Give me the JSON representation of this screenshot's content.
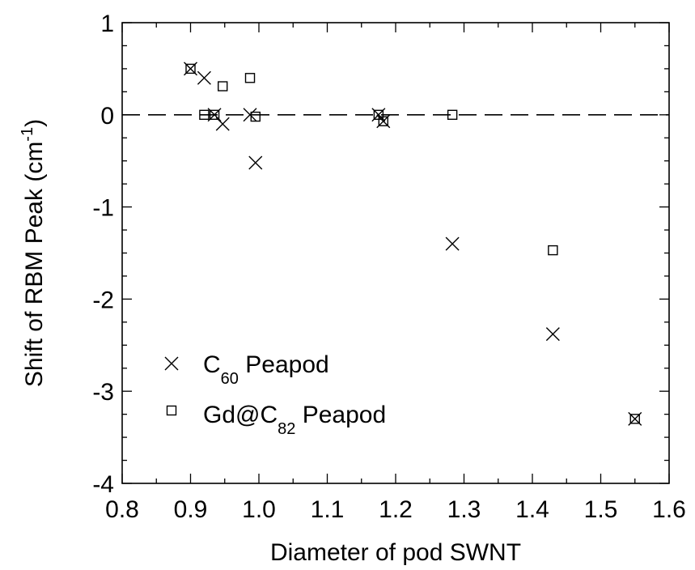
{
  "chart_data": {
    "type": "scatter",
    "title": "",
    "xlabel": "Diameter of pod SWNT",
    "ylabel": {
      "prefix": "Shift of RBM Peak (cm",
      "superscript": "-1",
      "suffix": ")"
    },
    "xlim": [
      0.8,
      1.6
    ],
    "ylim": [
      -4,
      1
    ],
    "xticks": [
      "0.8",
      "0.9",
      "1.0",
      "1.1",
      "1.2",
      "1.3",
      "1.4",
      "1.5",
      "1.6"
    ],
    "yticks": [
      "1",
      "0",
      "-1",
      "-2",
      "-3",
      "-4"
    ],
    "reference_line": {
      "y": 0,
      "style": "dashed"
    },
    "grid": false,
    "legend_position": "lower-left",
    "series": [
      {
        "name": {
          "base": "C",
          "subscript": "60",
          "suffix": " Peapod"
        },
        "marker": "x",
        "points": [
          [
            0.9,
            0.5
          ],
          [
            0.92,
            0.4
          ],
          [
            0.935,
            0.0
          ],
          [
            0.947,
            -0.1
          ],
          [
            0.987,
            0.0
          ],
          [
            0.995,
            -0.52
          ],
          [
            1.175,
            0.0
          ],
          [
            1.182,
            -0.07
          ],
          [
            1.283,
            -1.4
          ],
          [
            1.43,
            -2.38
          ],
          [
            1.55,
            -3.3
          ]
        ]
      },
      {
        "name": {
          "base": "Gd@C",
          "subscript": "82",
          "suffix": " Peapod"
        },
        "marker": "square",
        "points": [
          [
            0.9,
            0.5
          ],
          [
            0.92,
            0.0
          ],
          [
            0.935,
            0.0
          ],
          [
            0.947,
            0.31
          ],
          [
            0.987,
            0.4
          ],
          [
            0.995,
            -0.02
          ],
          [
            1.175,
            0.0
          ],
          [
            1.182,
            -0.07
          ],
          [
            1.283,
            0.0
          ],
          [
            1.43,
            -1.47
          ],
          [
            1.55,
            -3.3
          ]
        ]
      }
    ]
  }
}
